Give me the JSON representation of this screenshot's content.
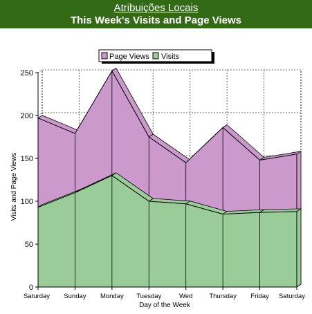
{
  "header": {
    "site_link": "Atribuições Locais",
    "page_title": "This Week's Visits and Page Views"
  },
  "chart_data": {
    "type": "area",
    "title": "",
    "xlabel": "Day of the Week",
    "ylabel": "Visits and Page Views",
    "categories": [
      "Saturday",
      "Sunday",
      "Monday",
      "Tuesday",
      "Wed",
      "Thursday",
      "Friday",
      "Saturday"
    ],
    "ylim": [
      0,
      250
    ],
    "yticks": [
      0,
      50,
      100,
      150,
      200,
      250
    ],
    "stacked": false,
    "grid": true,
    "legend_position": "top",
    "series": [
      {
        "name": "Page Views",
        "values": [
          197,
          179,
          252,
          175,
          145,
          186,
          148,
          155
        ],
        "color": "#cc99cc"
      },
      {
        "name": "Visits",
        "values": [
          93,
          110,
          130,
          100,
          97,
          85,
          87,
          88
        ],
        "color": "#99cc99"
      }
    ]
  },
  "colors": {
    "header_bg": "#336a16",
    "page_views": "#cc99cc",
    "visits": "#99cc99"
  }
}
